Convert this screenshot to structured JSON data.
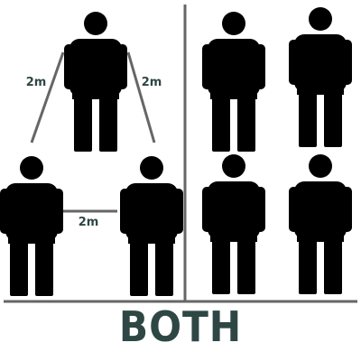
{
  "colors": {
    "figure": "#000000",
    "divider": "#666666",
    "distance_line": "#666666",
    "label": "#2e4744",
    "caption": "#2e4744",
    "background": "#ffffff"
  },
  "left_panel": {
    "figure_count": 3,
    "distances": [
      {
        "label": "2m"
      },
      {
        "label": "2m"
      },
      {
        "label": "2m"
      }
    ]
  },
  "right_panel": {
    "figure_count": 4
  },
  "caption": "BOTH"
}
